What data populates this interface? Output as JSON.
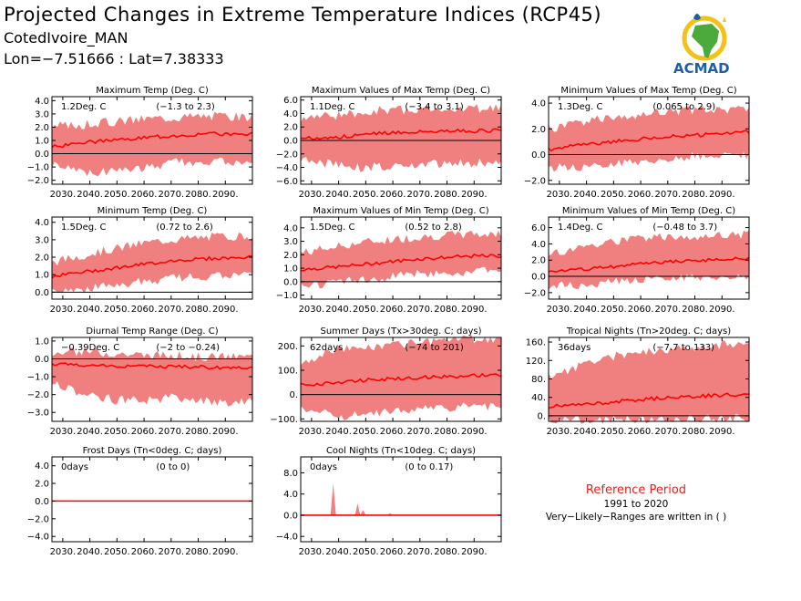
{
  "header": {
    "title": "Projected Changes in Extreme Temperature Indices (RCP45)",
    "location": "CotedIvoire_MAN",
    "coords": "Lon=−7.51666 : Lat=7.38333"
  },
  "logo": {
    "text": "ACMAD",
    "icon": "africa-map-logo"
  },
  "reference": {
    "title": "Reference Period",
    "years": "1991 to 2020",
    "note": "Very−Likely−Ranges are written in ( )"
  },
  "colors": {
    "band": "#f08080",
    "line": "#ff0000",
    "zero": "#000000",
    "ref_title": "#e8211b",
    "logo_blue": "#1a5fa8",
    "logo_green": "#4caa3c",
    "logo_yellow": "#f2c21b"
  },
  "chart_data": [
    {
      "type": "area",
      "title": "Maximum Temp (Deg. C)",
      "median_label": "1.2Deg. C",
      "range_label": "(−1.3 to 2.3)",
      "yticks": [
        4.0,
        3.0,
        2.0,
        1.0,
        0.0,
        -1.0,
        -2.0
      ],
      "ytick_labels": [
        "4.0",
        "3.0",
        "2.0",
        "1.0",
        "0.0",
        "−1.0",
        "−2.0"
      ],
      "ylim": [
        -2.3,
        4.3
      ],
      "x": [
        2026,
        2040,
        2050,
        2060,
        2070,
        2080,
        2090,
        2100
      ],
      "median": [
        0.5,
        0.9,
        1.0,
        1.2,
        1.35,
        1.45,
        1.5,
        1.5
      ],
      "lower": [
        -0.6,
        -1.3,
        -1.1,
        -0.9,
        -0.6,
        -0.4,
        -0.5,
        -0.8
      ],
      "upper": [
        1.9,
        2.1,
        2.3,
        2.5,
        2.6,
        2.7,
        2.7,
        2.6
      ]
    },
    {
      "type": "area",
      "title": "Maximum Values of Max Temp (Deg. C)",
      "median_label": "1.1Deg. C",
      "range_label": "(−3.4 to 3.1)",
      "yticks": [
        6.0,
        4.0,
        2.0,
        0.0,
        -2.0,
        -4.0,
        -6.0
      ],
      "ytick_labels": [
        "6.0",
        "4.0",
        "2.0",
        "0.0",
        "−2.0",
        "−4.0",
        "−6.0"
      ],
      "ylim": [
        -6.5,
        6.5
      ],
      "x": [
        2026,
        2040,
        2050,
        2060,
        2070,
        2080,
        2090,
        2100
      ],
      "median": [
        0.3,
        0.5,
        0.9,
        1.2,
        1.3,
        1.4,
        1.4,
        1.5
      ],
      "lower": [
        -2.5,
        -3.5,
        -3.8,
        -3.4,
        -3.2,
        -3.0,
        -3.0,
        -3.2
      ],
      "upper": [
        3.0,
        3.5,
        4.0,
        4.2,
        4.3,
        4.5,
        4.4,
        4.6
      ]
    },
    {
      "type": "area",
      "title": "Minimum Values of Max Temp (Deg. C)",
      "median_label": "1.3Deg. C",
      "range_label": "(0.065 to 2.9)",
      "yticks": [
        4.0,
        2.0,
        0.0,
        -2.0
      ],
      "ytick_labels": [
        "4.0",
        "2.0",
        "0.0",
        "−2.0"
      ],
      "ylim": [
        -2.3,
        4.5
      ],
      "x": [
        2026,
        2040,
        2050,
        2060,
        2070,
        2080,
        2090,
        2100
      ],
      "median": [
        0.4,
        0.8,
        1.0,
        1.2,
        1.4,
        1.5,
        1.6,
        1.8
      ],
      "lower": [
        -0.8,
        -0.9,
        -0.6,
        -0.4,
        -0.2,
        0.0,
        0.2,
        0.1
      ],
      "upper": [
        1.8,
        2.4,
        2.8,
        3.0,
        3.2,
        3.3,
        3.3,
        3.5
      ]
    },
    {
      "type": "area",
      "title": "Minimum Temp (Deg. C)",
      "median_label": "1.5Deg. C",
      "range_label": "(0.72 to 2.6)",
      "yticks": [
        4.0,
        3.0,
        2.0,
        1.0,
        0.0
      ],
      "ytick_labels": [
        "4.0",
        "3.0",
        "2.0",
        "1.0",
        "0.0"
      ],
      "ylim": [
        -0.4,
        4.3
      ],
      "x": [
        2026,
        2040,
        2050,
        2060,
        2070,
        2080,
        2090,
        2100
      ],
      "median": [
        0.9,
        1.2,
        1.4,
        1.6,
        1.8,
        1.9,
        1.95,
        2.0
      ],
      "lower": [
        0.2,
        0.3,
        0.5,
        0.7,
        0.9,
        1.0,
        1.05,
        1.1
      ],
      "upper": [
        1.6,
        2.1,
        2.4,
        2.7,
        2.9,
        3.0,
        3.1,
        3.1
      ]
    },
    {
      "type": "area",
      "title": "Maximum Values of Min Temp (Deg. C)",
      "median_label": "1.5Deg. C",
      "range_label": "(0.52 to 2.8)",
      "yticks": [
        4.0,
        3.0,
        2.0,
        1.0,
        0.0,
        -1.0
      ],
      "ytick_labels": [
        "4.0",
        "3.0",
        "2.0",
        "1.0",
        "0.0",
        "−1.0"
      ],
      "ylim": [
        -1.3,
        4.8
      ],
      "x": [
        2026,
        2040,
        2050,
        2060,
        2070,
        2080,
        2090,
        2100
      ],
      "median": [
        0.9,
        1.1,
        1.3,
        1.5,
        1.7,
        1.8,
        1.9,
        1.9
      ],
      "lower": [
        -0.2,
        0.1,
        0.3,
        0.5,
        0.7,
        0.8,
        0.9,
        0.9
      ],
      "upper": [
        2.0,
        2.5,
        2.8,
        3.0,
        3.2,
        3.3,
        3.4,
        3.4
      ]
    },
    {
      "type": "area",
      "title": "Minimum Values of Min Temp (Deg. C)",
      "median_label": "1.4Deg. C",
      "range_label": "(−0.48 to 3.7)",
      "yticks": [
        6.0,
        4.0,
        2.0,
        0.0,
        -2.0
      ],
      "ytick_labels": [
        "6.0",
        "4.0",
        "2.0",
        "0.0",
        "−2.0"
      ],
      "ylim": [
        -2.8,
        7.3
      ],
      "x": [
        2026,
        2040,
        2050,
        2060,
        2070,
        2080,
        2090,
        2100
      ],
      "median": [
        0.6,
        0.9,
        1.2,
        1.5,
        1.8,
        2.0,
        2.1,
        2.2
      ],
      "lower": [
        -1.0,
        -0.8,
        -0.5,
        -0.2,
        0.0,
        0.1,
        0.2,
        0.3
      ],
      "upper": [
        2.5,
        3.5,
        4.0,
        4.4,
        4.6,
        4.7,
        4.8,
        4.9
      ]
    },
    {
      "type": "area",
      "title": "Diurnal Temp Range (Deg. C)",
      "median_label": "−0.39Deg. C",
      "range_label": "(−2 to −0.24)",
      "yticks": [
        1.0,
        0.0,
        -1.0,
        -2.0,
        -3.0
      ],
      "ytick_labels": [
        "1.0",
        "0.0",
        "−1.0",
        "−2.0",
        "−3.0"
      ],
      "ylim": [
        -3.5,
        1.2
      ],
      "x": [
        2026,
        2040,
        2050,
        2060,
        2070,
        2080,
        2090,
        2100
      ],
      "median": [
        -0.3,
        -0.35,
        -0.4,
        -0.4,
        -0.45,
        -0.45,
        -0.5,
        -0.45
      ],
      "lower": [
        -1.2,
        -2.0,
        -2.2,
        -2.2,
        -2.1,
        -2.2,
        -2.3,
        -2.2
      ],
      "upper": [
        0.2,
        0.3,
        0.2,
        0.1,
        0.1,
        0.0,
        0.0,
        0.0
      ]
    },
    {
      "type": "area",
      "title": "Summer Days (Tx>30deg. C; days)",
      "median_label": "62days",
      "range_label": "(−74 to 201)",
      "yticks": [
        200,
        100,
        0,
        -100
      ],
      "ytick_labels": [
        "200.",
        "100.",
        "0.",
        "−100."
      ],
      "ylim": [
        -110,
        235
      ],
      "x": [
        2026,
        2040,
        2050,
        2060,
        2070,
        2080,
        2090,
        2100
      ],
      "median": [
        40,
        50,
        60,
        65,
        70,
        75,
        78,
        80
      ],
      "lower": [
        -40,
        -80,
        -75,
        -65,
        -55,
        -45,
        -40,
        -40
      ],
      "upper": [
        130,
        175,
        190,
        200,
        210,
        215,
        220,
        225
      ]
    },
    {
      "type": "area",
      "title": "Tropical Nights (Tn>20deg. C; days)",
      "median_label": "36days",
      "range_label": "(−7.7 to 133)",
      "yticks": [
        160,
        120,
        80,
        40,
        0
      ],
      "ytick_labels": [
        "160.",
        "120.",
        "80.",
        "40.",
        "0."
      ],
      "ylim": [
        -12,
        170
      ],
      "x": [
        2026,
        2040,
        2050,
        2060,
        2070,
        2080,
        2090,
        2100
      ],
      "median": [
        20,
        25,
        30,
        35,
        40,
        42,
        45,
        46
      ],
      "lower": [
        -5,
        -6,
        -4,
        -3,
        -2,
        -2,
        -1,
        -1
      ],
      "upper": [
        80,
        110,
        125,
        135,
        140,
        145,
        150,
        155
      ]
    },
    {
      "type": "area",
      "title": "Frost Days (Tn<0deg. C; days)",
      "median_label": "0days",
      "range_label": "(0 to 0)",
      "yticks": [
        4.0,
        2.0,
        0.0,
        -2.0,
        -4.0
      ],
      "ytick_labels": [
        "4.0",
        "2.0",
        "0.0",
        "−2.0",
        "−4.0"
      ],
      "ylim": [
        -4.6,
        5.0
      ],
      "x": [
        2026,
        2100
      ],
      "median": [
        0,
        0
      ],
      "lower": [
        0,
        0
      ],
      "upper": [
        0,
        0
      ]
    },
    {
      "type": "area",
      "title": "Cool Nights (Tn<10deg. C; days)",
      "median_label": "0days",
      "range_label": "(0 to 0.17)",
      "yticks": [
        8.0,
        4.0,
        0.0,
        -4.0
      ],
      "ytick_labels": [
        "8.0",
        "4.0",
        "0.0",
        "−4.0"
      ],
      "ylim": [
        -5.0,
        11.0
      ],
      "x": [
        2026,
        2037,
        2038,
        2039,
        2046,
        2047,
        2048,
        2049,
        2050,
        2058,
        2059,
        2060,
        2100
      ],
      "median": [
        0,
        0,
        0,
        0,
        0,
        0,
        0,
        0,
        0,
        0,
        0,
        0,
        0
      ],
      "lower": [
        0,
        0,
        0,
        0,
        0,
        0,
        0,
        0,
        0,
        0,
        0,
        0,
        0
      ],
      "upper": [
        0,
        0,
        6.0,
        0,
        0,
        2.2,
        0,
        1.0,
        0,
        0,
        0.4,
        0,
        0
      ]
    }
  ],
  "xtick_labels": [
    "2030.",
    "2040.",
    "2050.",
    "2060.",
    "2070.",
    "2080.",
    "2090."
  ],
  "xticks": [
    2030,
    2040,
    2050,
    2060,
    2070,
    2080,
    2090
  ],
  "xlim": [
    2026,
    2100
  ]
}
